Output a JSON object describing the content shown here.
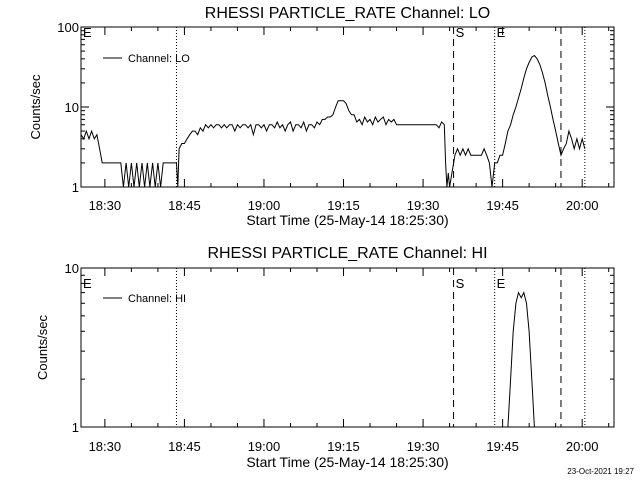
{
  "footer": {
    "timestamp": "23-Oct-2021 19:27"
  },
  "chart_data": [
    {
      "type": "line",
      "title": "RHESSI PARTICLE_RATE Channel: LO",
      "xlabel": "Start Time (25-May-14 18:25:30)",
      "ylabel": "Counts/sec",
      "y_scale": "log",
      "ylim": [
        1,
        100
      ],
      "y_ticks": [
        {
          "v": 1,
          "label": "1"
        },
        {
          "v": 10,
          "label": "10"
        },
        {
          "v": 100,
          "label": "100"
        }
      ],
      "xlim": [
        "18:25:30",
        "20:06:00"
      ],
      "x_ticks": [
        "18:30",
        "18:45",
        "19:00",
        "19:15",
        "19:30",
        "19:45",
        "20:00"
      ],
      "legend": {
        "placement": "top-left",
        "entries": [
          "Channel: LO"
        ]
      },
      "annotations": [
        {
          "label": "E",
          "at": "18:25:30"
        },
        {
          "label": "S",
          "at": "19:35:45"
        },
        {
          "label": "E",
          "at": "19:43:30"
        }
      ],
      "vlines": [
        {
          "at": "18:43:30",
          "style": "dotted"
        },
        {
          "at": "19:35:45",
          "style": "dashed"
        },
        {
          "at": "19:43:30",
          "style": "dotted"
        },
        {
          "at": "19:56:00",
          "style": "dashed"
        },
        {
          "at": "20:00:30",
          "style": "dotted"
        }
      ],
      "series": [
        {
          "name": "Channel: LO",
          "points": [
            [
              "18:25:30",
              4.5
            ],
            [
              "18:26:00",
              4
            ],
            [
              "18:26:30",
              5
            ],
            [
              "18:27:00",
              4
            ],
            [
              "18:27:30",
              5
            ],
            [
              "18:28:00",
              4
            ],
            [
              "18:28:30",
              4.5
            ],
            [
              "18:29:00",
              3
            ],
            [
              "18:29:30",
              2
            ],
            [
              "18:33:00",
              2
            ],
            [
              "18:33:30",
              1
            ],
            [
              "18:34:00",
              2
            ],
            [
              "18:34:30",
              1
            ],
            [
              "18:35:00",
              2
            ],
            [
              "18:35:30",
              1
            ],
            [
              "18:36:00",
              2
            ],
            [
              "18:36:30",
              1
            ],
            [
              "18:37:00",
              2
            ],
            [
              "18:37:30",
              1
            ],
            [
              "18:38:00",
              2
            ],
            [
              "18:38:30",
              1
            ],
            [
              "18:39:00",
              2
            ],
            [
              "18:39:30",
              1
            ],
            [
              "18:40:00",
              2
            ],
            [
              "18:40:30",
              1
            ],
            [
              "18:41:00",
              2
            ],
            [
              "18:41:30",
              2
            ],
            [
              "18:43:30",
              2
            ],
            [
              "18:43:45",
              1
            ],
            [
              "18:44:00",
              3
            ],
            [
              "18:44:30",
              3.5
            ],
            [
              "18:45:00",
              3.5
            ],
            [
              "18:45:30",
              4
            ],
            [
              "18:46:00",
              4.5
            ],
            [
              "18:46:30",
              5
            ],
            [
              "18:47:00",
              5
            ],
            [
              "18:47:30",
              4.5
            ],
            [
              "18:48:00",
              5.5
            ],
            [
              "18:48:30",
              5
            ],
            [
              "18:49:00",
              6
            ],
            [
              "18:49:30",
              5.5
            ],
            [
              "18:50:00",
              6
            ],
            [
              "18:50:30",
              5.5
            ],
            [
              "18:51:00",
              6
            ],
            [
              "18:51:30",
              6
            ],
            [
              "18:52:00",
              5.5
            ],
            [
              "18:52:30",
              6
            ],
            [
              "18:53:00",
              5.5
            ],
            [
              "18:53:30",
              6
            ],
            [
              "18:54:00",
              6
            ],
            [
              "18:54:30",
              5
            ],
            [
              "18:55:00",
              6
            ],
            [
              "18:55:30",
              5.5
            ],
            [
              "18:56:00",
              6
            ],
            [
              "18:56:30",
              6
            ],
            [
              "18:57:00",
              5.5
            ],
            [
              "18:57:30",
              6
            ],
            [
              "18:58:00",
              4.5
            ],
            [
              "18:58:30",
              6
            ],
            [
              "18:59:00",
              6
            ],
            [
              "18:59:30",
              5.5
            ],
            [
              "19:00:00",
              6
            ],
            [
              "19:00:30",
              5
            ],
            [
              "19:01:00",
              6
            ],
            [
              "19:01:30",
              6
            ],
            [
              "19:02:00",
              5.5
            ],
            [
              "19:02:30",
              6.5
            ],
            [
              "19:03:00",
              5.5
            ],
            [
              "19:03:30",
              6
            ],
            [
              "19:04:00",
              5
            ],
            [
              "19:04:30",
              6
            ],
            [
              "19:05:00",
              6.5
            ],
            [
              "19:05:30",
              5
            ],
            [
              "19:06:00",
              6
            ],
            [
              "19:06:30",
              6
            ],
            [
              "19:07:00",
              5.5
            ],
            [
              "19:07:30",
              6.5
            ],
            [
              "19:08:00",
              5
            ],
            [
              "19:08:30",
              6
            ],
            [
              "19:09:00",
              6
            ],
            [
              "19:09:30",
              5.5
            ],
            [
              "19:10:00",
              6.5
            ],
            [
              "19:10:30",
              6
            ],
            [
              "19:11:00",
              7
            ],
            [
              "19:11:30",
              7
            ],
            [
              "19:12:00",
              7.5
            ],
            [
              "19:12:30",
              7.5
            ],
            [
              "19:13:00",
              8
            ],
            [
              "19:13:30",
              10
            ],
            [
              "19:14:00",
              12
            ],
            [
              "19:14:30",
              12
            ],
            [
              "19:15:00",
              12
            ],
            [
              "19:15:30",
              11
            ],
            [
              "19:16:00",
              9
            ],
            [
              "19:16:30",
              8
            ],
            [
              "19:17:00",
              8
            ],
            [
              "19:17:30",
              6.5
            ],
            [
              "19:18:00",
              7
            ],
            [
              "19:18:30",
              6
            ],
            [
              "19:19:00",
              7.5
            ],
            [
              "19:19:30",
              6.5
            ],
            [
              "19:20:00",
              7
            ],
            [
              "19:20:30",
              6
            ],
            [
              "19:21:00",
              7.5
            ],
            [
              "19:21:30",
              6.5
            ],
            [
              "19:22:00",
              7
            ],
            [
              "19:22:30",
              7.5
            ],
            [
              "19:23:00",
              6
            ],
            [
              "19:23:30",
              7
            ],
            [
              "19:24:00",
              6.5
            ],
            [
              "19:24:30",
              7
            ],
            [
              "19:25:00",
              6
            ],
            [
              "19:25:30",
              6
            ],
            [
              "19:26:00",
              6
            ],
            [
              "19:26:30",
              6
            ],
            [
              "19:27:00",
              6
            ],
            [
              "19:27:30",
              6
            ],
            [
              "19:28:00",
              6
            ],
            [
              "19:28:30",
              6
            ],
            [
              "19:29:00",
              6
            ],
            [
              "19:29:30",
              6
            ],
            [
              "19:30:00",
              6
            ],
            [
              "19:30:30",
              6
            ],
            [
              "19:31:00",
              6
            ],
            [
              "19:31:30",
              6
            ],
            [
              "19:32:00",
              6
            ],
            [
              "19:32:30",
              6
            ],
            [
              "19:33:00",
              5.5
            ],
            [
              "19:33:30",
              6.5
            ],
            [
              "19:34:00",
              6
            ],
            [
              "19:34:15",
              2
            ],
            [
              "19:34:30",
              1
            ],
            [
              "19:34:45",
              1.5
            ],
            [
              "19:35:00",
              1
            ],
            [
              "19:36:00",
              2.5
            ],
            [
              "19:36:30",
              3
            ],
            [
              "19:37:00",
              2.5
            ],
            [
              "19:37:30",
              3
            ],
            [
              "19:38:00",
              2.5
            ],
            [
              "19:38:30",
              3
            ],
            [
              "19:39:00",
              2.5
            ],
            [
              "19:39:30",
              2.5
            ],
            [
              "19:40:00",
              2.5
            ],
            [
              "19:40:30",
              2.5
            ],
            [
              "19:41:00",
              2.5
            ],
            [
              "19:41:30",
              3
            ],
            [
              "19:42:00",
              2.5
            ],
            [
              "19:42:30",
              2
            ],
            [
              "19:43:00",
              1
            ],
            [
              "19:43:30",
              2
            ],
            [
              "19:44:00",
              2
            ],
            [
              "19:44:30",
              2.5
            ],
            [
              "19:45:00",
              2.5
            ],
            [
              "19:45:30",
              3.5
            ],
            [
              "19:46:00",
              5
            ],
            [
              "19:46:30",
              6
            ],
            [
              "19:47:00",
              8
            ],
            [
              "19:47:30",
              10
            ],
            [
              "19:48:00",
              13
            ],
            [
              "19:48:30",
              17
            ],
            [
              "19:49:00",
              23
            ],
            [
              "19:49:30",
              30
            ],
            [
              "19:50:00",
              36
            ],
            [
              "19:50:30",
              42
            ],
            [
              "19:51:00",
              44
            ],
            [
              "19:51:30",
              40
            ],
            [
              "19:52:00",
              34
            ],
            [
              "19:52:30",
              27
            ],
            [
              "19:53:00",
              20
            ],
            [
              "19:53:30",
              14
            ],
            [
              "19:54:00",
              10
            ],
            [
              "19:54:30",
              7
            ],
            [
              "19:55:00",
              5
            ],
            [
              "19:55:30",
              3.5
            ],
            [
              "19:56:00",
              2.5
            ],
            [
              "19:56:30",
              3
            ],
            [
              "19:57:00",
              3.5
            ],
            [
              "19:57:30",
              5
            ],
            [
              "19:58:00",
              4
            ],
            [
              "19:58:30",
              3
            ],
            [
              "19:59:00",
              4
            ],
            [
              "19:59:30",
              3
            ],
            [
              "20:00:00",
              4
            ],
            [
              "20:00:30",
              3
            ]
          ]
        }
      ]
    },
    {
      "type": "line",
      "title": "RHESSI PARTICLE_RATE Channel: HI",
      "xlabel": "Start Time (25-May-14 18:25:30)",
      "ylabel": "Counts/sec",
      "y_scale": "log",
      "ylim": [
        1,
        10
      ],
      "y_ticks": [
        {
          "v": 1,
          "label": "1"
        },
        {
          "v": 10,
          "label": "10"
        }
      ],
      "xlim": [
        "18:25:30",
        "20:06:00"
      ],
      "x_ticks": [
        "18:30",
        "18:45",
        "19:00",
        "19:15",
        "19:30",
        "19:45",
        "20:00"
      ],
      "legend": {
        "placement": "top-left",
        "entries": [
          "Channel: HI"
        ]
      },
      "annotations": [
        {
          "label": "E",
          "at": "18:25:30"
        },
        {
          "label": "S",
          "at": "19:35:45"
        },
        {
          "label": "E",
          "at": "19:43:30"
        }
      ],
      "vlines": [
        {
          "at": "18:43:30",
          "style": "dotted"
        },
        {
          "at": "19:35:45",
          "style": "dashed"
        },
        {
          "at": "19:43:30",
          "style": "dotted"
        },
        {
          "at": "19:56:00",
          "style": "dashed"
        },
        {
          "at": "20:00:30",
          "style": "dotted"
        }
      ],
      "series": [
        {
          "name": "Channel: HI",
          "points": [
            [
              "19:46:00",
              1
            ],
            [
              "19:46:30",
              2
            ],
            [
              "19:47:00",
              4
            ],
            [
              "19:47:30",
              6
            ],
            [
              "19:48:00",
              7
            ],
            [
              "19:48:30",
              6.5
            ],
            [
              "19:49:00",
              7
            ],
            [
              "19:49:30",
              6
            ],
            [
              "19:50:00",
              4
            ],
            [
              "19:50:30",
              2
            ],
            [
              "19:51:00",
              1
            ]
          ]
        }
      ]
    }
  ]
}
